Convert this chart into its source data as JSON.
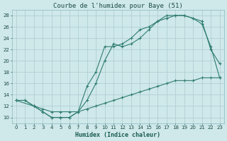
{
  "title": "Courbe de l'humidex pour Baye (51)",
  "xlabel": "Humidex (Indice chaleur)",
  "bg_color": "#cfe8ea",
  "grid_color": "#b0d0d4",
  "line_color": "#2e7d6e",
  "curve1_x": [
    0,
    1,
    2,
    3,
    4,
    5,
    6,
    7,
    8,
    9,
    10,
    11,
    12,
    13,
    14,
    15,
    16,
    17,
    18,
    19,
    20,
    21,
    22,
    23
  ],
  "curve1_y": [
    13,
    13,
    12,
    11,
    10,
    10,
    10,
    11,
    13,
    16,
    20,
    23,
    22.5,
    23,
    24,
    25.5,
    27,
    27.5,
    28,
    28,
    27.5,
    27,
    22,
    19.5
  ],
  "curve2_x": [
    0,
    1,
    2,
    3,
    4,
    5,
    6,
    7,
    8,
    9,
    10,
    11,
    12,
    13,
    14,
    15,
    16,
    17,
    18,
    19,
    20,
    21,
    22,
    23
  ],
  "curve2_y": [
    13,
    13,
    12,
    11,
    10,
    10,
    10,
    11,
    15.5,
    18,
    22.5,
    22.5,
    23,
    24,
    25.5,
    26,
    27,
    28,
    28,
    28,
    27.5,
    26.5,
    22.5,
    17
  ],
  "curve3_x": [
    0,
    2,
    3,
    4,
    5,
    6,
    7,
    8,
    9,
    10,
    11,
    12,
    13,
    14,
    15,
    16,
    17,
    18,
    19,
    20,
    21,
    22,
    23
  ],
  "curve3_y": [
    13,
    12,
    11.5,
    11,
    11,
    11,
    11,
    11.5,
    12,
    12.5,
    13,
    13.5,
    14,
    14.5,
    15,
    15.5,
    16,
    16.5,
    16.5,
    16.5,
    17,
    17,
    17
  ],
  "ylim": [
    9,
    29
  ],
  "xlim": [
    -0.5,
    23.5
  ],
  "yticks": [
    10,
    12,
    14,
    16,
    18,
    20,
    22,
    24,
    26,
    28
  ],
  "xticks": [
    0,
    1,
    2,
    3,
    4,
    5,
    6,
    7,
    8,
    9,
    10,
    11,
    12,
    13,
    14,
    15,
    16,
    17,
    18,
    19,
    20,
    21,
    22,
    23
  ],
  "title_fontsize": 6.5,
  "axis_fontsize": 6,
  "tick_fontsize": 5
}
